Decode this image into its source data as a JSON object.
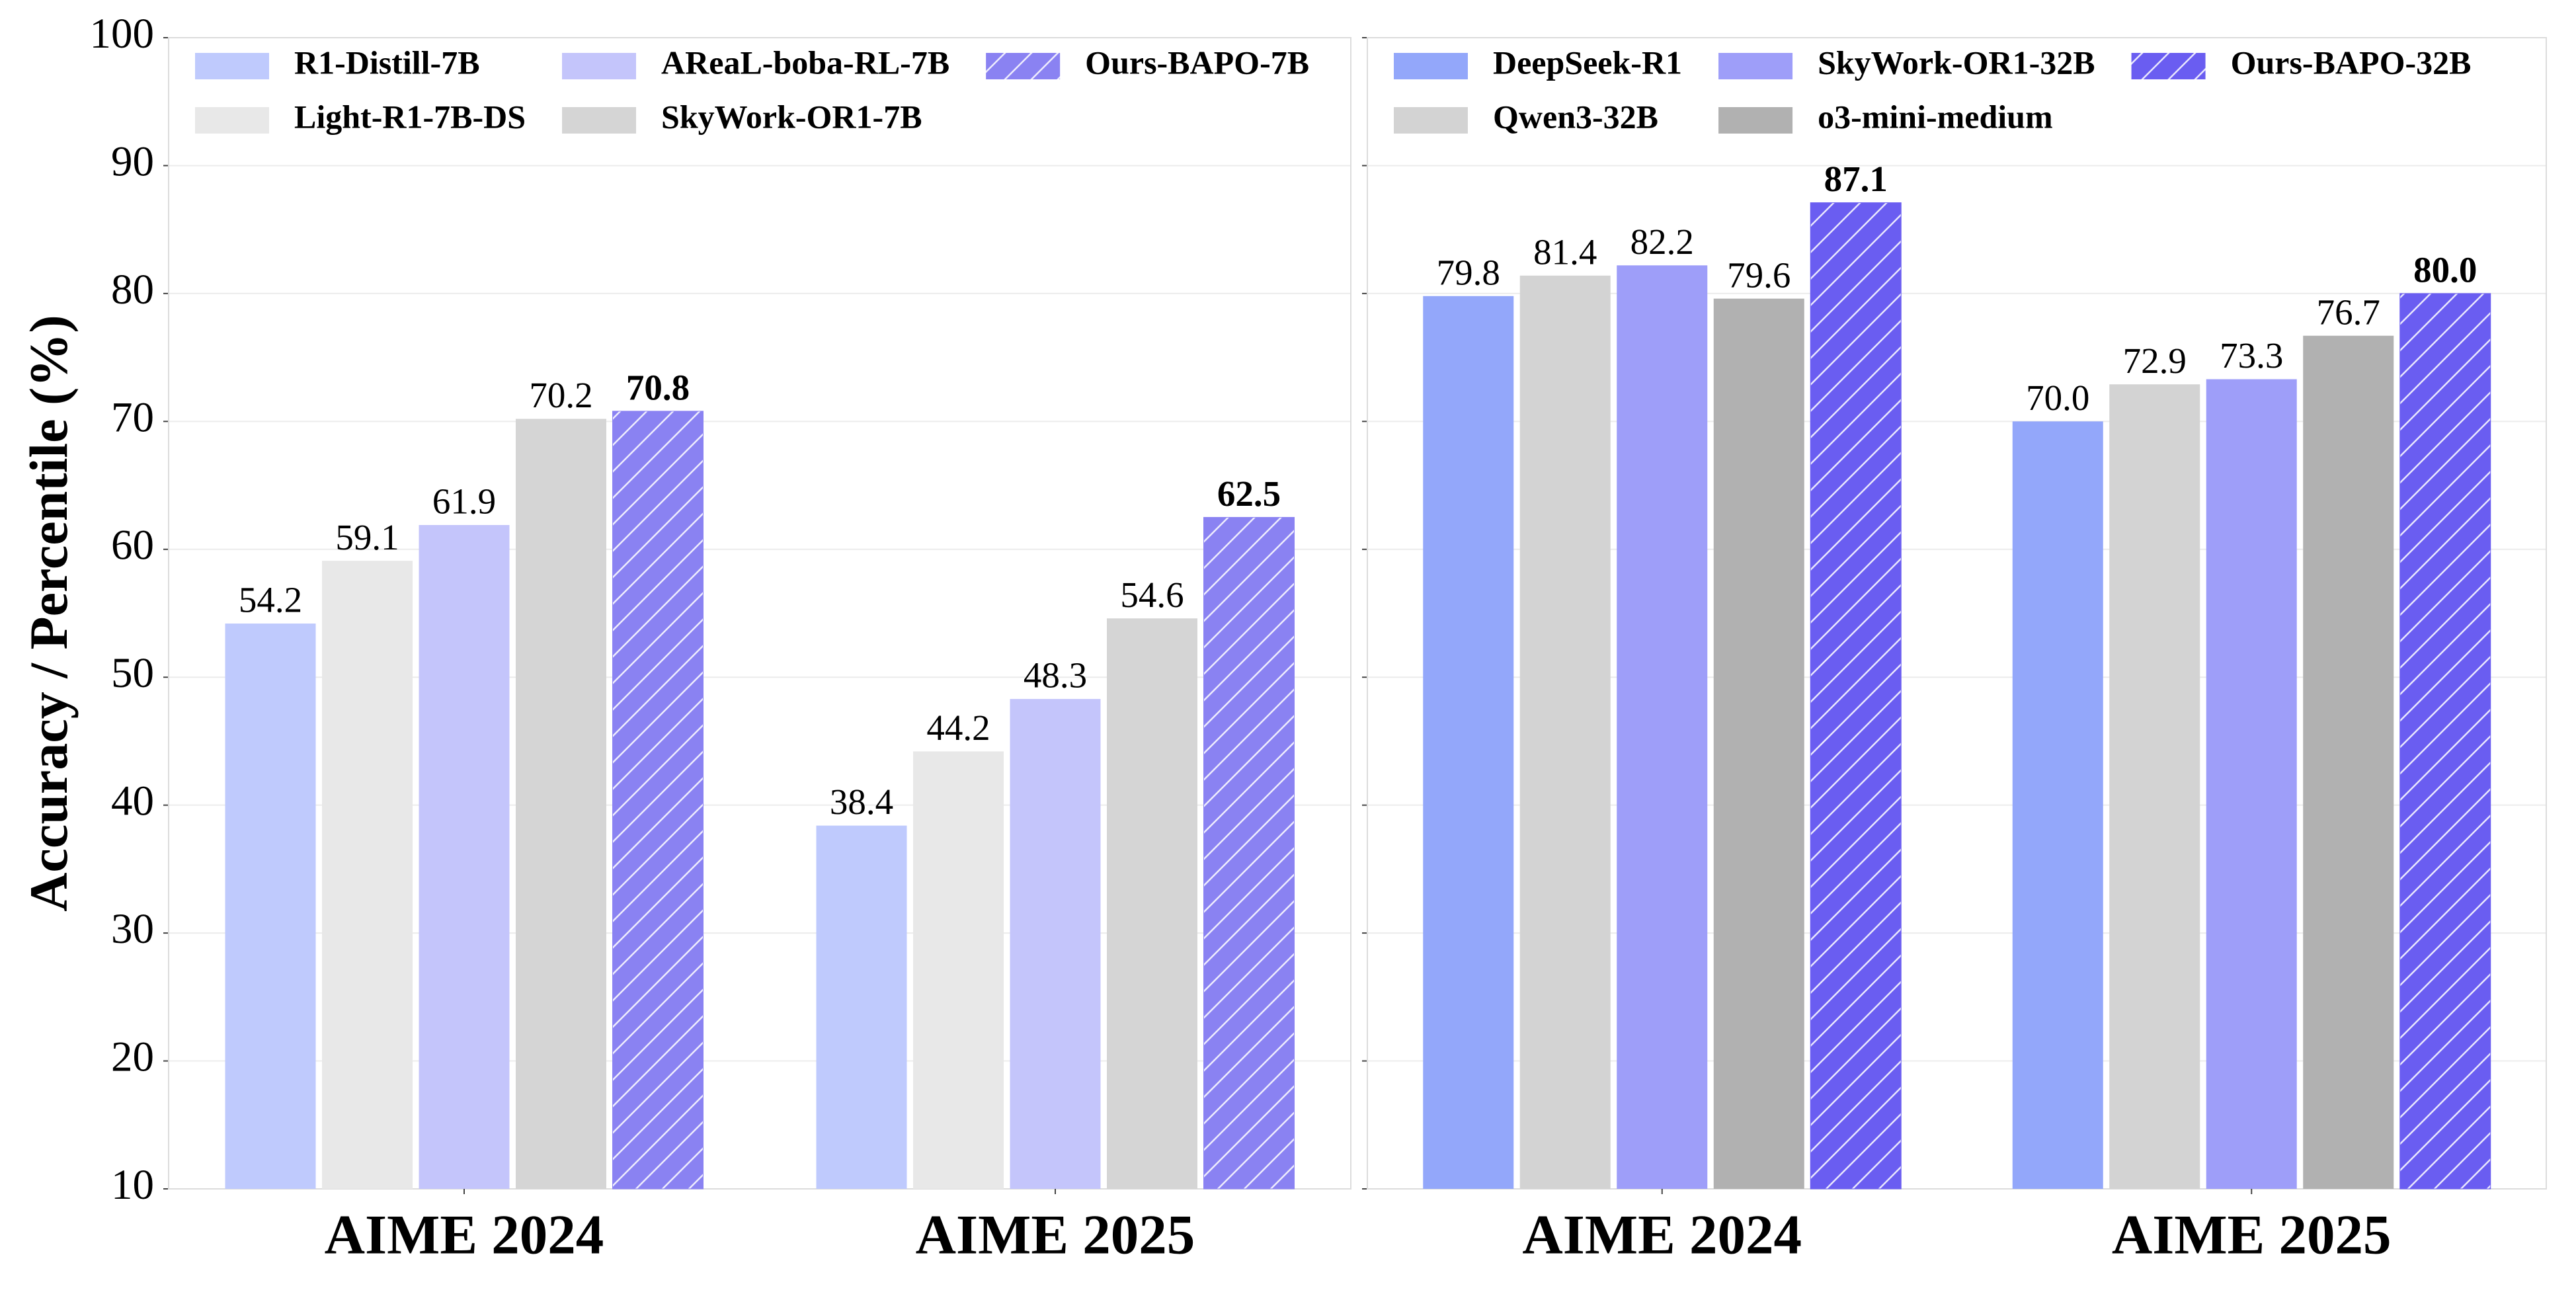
{
  "chart_data": [
    {
      "type": "bar",
      "y_label": "Accuracy / Percentile (%)",
      "categories": [
        "AIME 2024",
        "AIME 2025"
      ],
      "series": [
        {
          "name": "R1-Distill-7B",
          "color": "#bfcafd",
          "values": [
            54.2,
            38.4
          ]
        },
        {
          "name": "Light-R1-7B-DS",
          "color": "#e8e8e8",
          "values": [
            59.1,
            44.2
          ]
        },
        {
          "name": "AReaL-boba-RL-7B",
          "color": "#c4c5fb",
          "values": [
            61.9,
            48.3
          ]
        },
        {
          "name": "SkyWork-OR1-7B",
          "color": "#d5d5d5",
          "values": [
            70.2,
            54.6
          ]
        },
        {
          "name": "Ours-BAPO-7B",
          "color": "#8a82f2",
          "hatch": "/",
          "values": [
            70.8,
            62.5
          ]
        }
      ],
      "ylim": [
        10,
        100
      ],
      "yticks": [
        10,
        20,
        30,
        40,
        50,
        60,
        70,
        80,
        90,
        100
      ],
      "grid": true,
      "legend": "upper left"
    },
    {
      "type": "bar",
      "categories": [
        "AIME 2024",
        "AIME 2025"
      ],
      "series": [
        {
          "name": "DeepSeek-R1",
          "color": "#93a7fa",
          "values": [
            79.8,
            70
          ],
          "value_labels": [
            "79.8",
            "70.0"
          ]
        },
        {
          "name": "Qwen3-32B",
          "color": "#d3d3d3",
          "values": [
            81.4,
            72.9
          ]
        },
        {
          "name": "SkyWork-OR1-32B",
          "color": "#9e9ef9",
          "values": [
            82.2,
            73.3
          ]
        },
        {
          "name": "o3-mini-medium",
          "color": "#b1b1b1",
          "values": [
            79.6,
            76.7
          ]
        },
        {
          "name": "Ours-BAPO-32B",
          "color": "#6a5df1",
          "hatch": "/",
          "values": [
            87.1,
            80
          ],
          "value_labels": [
            "87.1",
            "80.0"
          ]
        }
      ],
      "ylim": [
        10,
        100
      ],
      "yticks": [
        10,
        20,
        30,
        40,
        50,
        60,
        70,
        80,
        90,
        100
      ],
      "grid": true,
      "legend": "upper left"
    }
  ]
}
